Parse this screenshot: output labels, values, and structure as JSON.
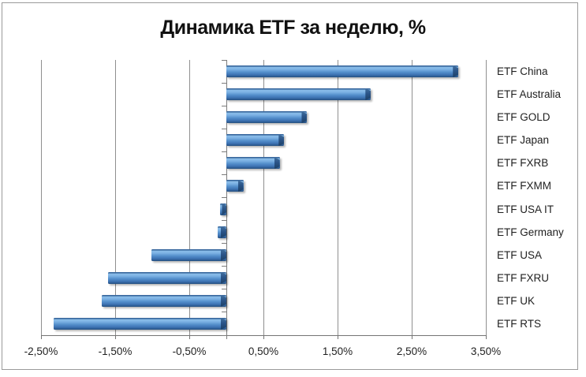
{
  "window": {
    "background": "#ffffff",
    "frame_border_color": "#9a9a9a"
  },
  "chart_data": {
    "type": "bar",
    "orientation": "horizontal",
    "title": "Динамика ETF за неделю, %",
    "categories": [
      "ETF China",
      "ETF Australia",
      "ETF GOLD",
      "ETF Japan",
      "ETF FXRB",
      "ETF FXMM",
      "ETF USA IT",
      "ETF Germany",
      "ETF USA",
      "ETF FXRU",
      "ETF UK",
      "ETF RTS"
    ],
    "values": [
      3.13,
      1.95,
      1.09,
      0.78,
      0.72,
      0.23,
      -0.08,
      -0.12,
      -1.01,
      -1.6,
      -1.68,
      -2.33
    ],
    "xlabel": "",
    "ylabel": "",
    "xlim": [
      -2.5,
      3.5
    ],
    "x_tick_step": 1.0,
    "x_tick_labels": [
      "-2,50%",
      "-1,50%",
      "-0,50%",
      "0,50%",
      "1,50%",
      "2,50%",
      "3,50%"
    ],
    "grid": "vertical-major-gridlines",
    "legend": "none",
    "value_format": "percent-comma-decimal",
    "category_labels_position": "right",
    "colors": {
      "bar_main": "#4f81bd",
      "bar_highlight": "#8cbfeb",
      "bar_dark": "#24507f",
      "gridline": "#8f8f8f",
      "axis": "#747474",
      "text": "#1f1f1f",
      "title_text": "#111111"
    }
  }
}
